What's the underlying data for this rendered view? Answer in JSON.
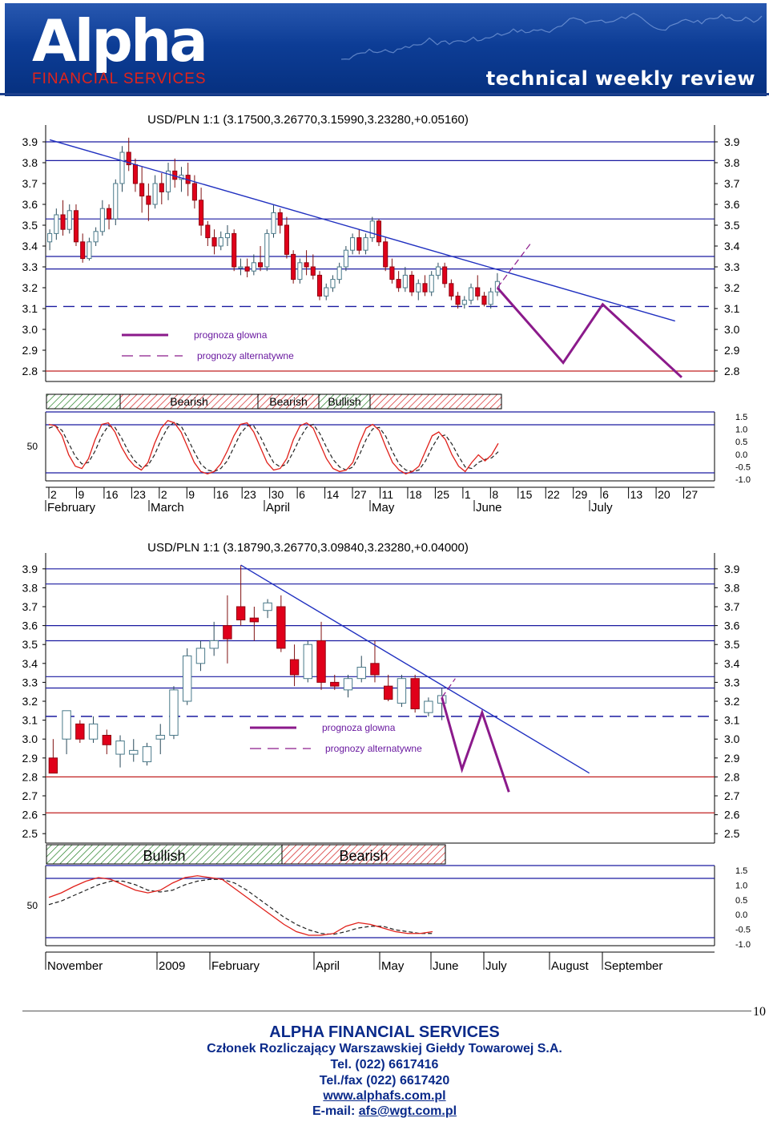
{
  "header": {
    "logo_text": "Alpha",
    "logo_subtitle": "FINANCIAL SERVICES",
    "tagline": "technical weekly review"
  },
  "colors": {
    "brand_blue": "#0d3d96",
    "brand_red": "#e2231a",
    "grid_blue": "#1a1aa0",
    "up_candle": "#7ba7b8",
    "down_candle": "#e0001a",
    "forecast": "#8b1a8b",
    "oscillator_main": "#e0201a",
    "oscillator_signal": "#222222"
  },
  "chart_data": [
    {
      "type": "candlestick",
      "title": "USD/PLN 1:1 (3.17500,3.26770,3.15990,3.23280,+0.05160)",
      "y_ticks": [
        "3.9",
        "3.8",
        "3.7",
        "3.6",
        "3.5",
        "3.4",
        "3.3",
        "3.2",
        "3.1",
        "3.0",
        "2.9",
        "2.8"
      ],
      "ylim": [
        2.75,
        3.95
      ],
      "x_day_ticks": [
        "2",
        "9",
        "16",
        "23",
        "2",
        "9",
        "16",
        "23",
        "30",
        "6",
        "14",
        "27",
        "11",
        "18",
        "25",
        "1",
        "8",
        "15",
        "22",
        "29",
        "6",
        "13",
        "20",
        "27"
      ],
      "x_month_ticks": [
        "February",
        "March",
        "April",
        "May",
        "June",
        "July"
      ],
      "horizontal_lines": [
        3.9,
        3.81,
        3.53,
        3.35,
        3.29,
        2.8
      ],
      "dashed_line": 3.11,
      "trendline": [
        [
          0,
          3.91
        ],
        [
          95,
          3.04
        ]
      ],
      "legend": [
        "prognoza glowna",
        "prognozy alternatywne"
      ],
      "forecast_path": [
        [
          68,
          3.2
        ],
        [
          78,
          2.84
        ],
        [
          84,
          3.12
        ],
        [
          96,
          2.77
        ]
      ],
      "alt_forecast": [
        [
          68,
          3.2
        ],
        [
          73,
          3.41
        ]
      ],
      "trend_bands": [
        {
          "label": "",
          "state": "bull"
        },
        {
          "label": "Bearish",
          "state": "bear"
        },
        {
          "label": "Bearish",
          "state": "bear"
        },
        {
          "label": "Bullish",
          "state": "bull"
        },
        {
          "label": "",
          "state": "bear"
        }
      ],
      "oscillator_ticks": [
        "1.5",
        "1.0",
        "0.5",
        "0.0",
        "-0.5",
        "-1.0"
      ],
      "oscillator_left_label": "50",
      "candles": [
        {
          "o": 3.42,
          "h": 3.48,
          "l": 3.38,
          "c": 3.46
        },
        {
          "o": 3.46,
          "h": 3.58,
          "l": 3.43,
          "c": 3.55
        },
        {
          "o": 3.55,
          "h": 3.62,
          "l": 3.45,
          "c": 3.48
        },
        {
          "o": 3.48,
          "h": 3.6,
          "l": 3.46,
          "c": 3.57
        },
        {
          "o": 3.57,
          "h": 3.6,
          "l": 3.4,
          "c": 3.42
        },
        {
          "o": 3.42,
          "h": 3.46,
          "l": 3.32,
          "c": 3.34
        },
        {
          "o": 3.34,
          "h": 3.44,
          "l": 3.33,
          "c": 3.42
        },
        {
          "o": 3.42,
          "h": 3.49,
          "l": 3.4,
          "c": 3.47
        },
        {
          "o": 3.47,
          "h": 3.62,
          "l": 3.45,
          "c": 3.58
        },
        {
          "o": 3.58,
          "h": 3.6,
          "l": 3.48,
          "c": 3.53
        },
        {
          "o": 3.53,
          "h": 3.72,
          "l": 3.5,
          "c": 3.7
        },
        {
          "o": 3.7,
          "h": 3.88,
          "l": 3.66,
          "c": 3.85
        },
        {
          "o": 3.85,
          "h": 3.92,
          "l": 3.76,
          "c": 3.79
        },
        {
          "o": 3.79,
          "h": 3.82,
          "l": 3.66,
          "c": 3.7
        },
        {
          "o": 3.7,
          "h": 3.78,
          "l": 3.56,
          "c": 3.64
        },
        {
          "o": 3.64,
          "h": 3.7,
          "l": 3.52,
          "c": 3.6
        },
        {
          "o": 3.6,
          "h": 3.74,
          "l": 3.58,
          "c": 3.7
        },
        {
          "o": 3.7,
          "h": 3.75,
          "l": 3.6,
          "c": 3.66
        },
        {
          "o": 3.66,
          "h": 3.8,
          "l": 3.62,
          "c": 3.76
        },
        {
          "o": 3.76,
          "h": 3.82,
          "l": 3.68,
          "c": 3.72
        },
        {
          "o": 3.72,
          "h": 3.78,
          "l": 3.66,
          "c": 3.74
        },
        {
          "o": 3.74,
          "h": 3.8,
          "l": 3.64,
          "c": 3.7
        },
        {
          "o": 3.7,
          "h": 3.74,
          "l": 3.58,
          "c": 3.62
        },
        {
          "o": 3.62,
          "h": 3.68,
          "l": 3.45,
          "c": 3.5
        },
        {
          "o": 3.5,
          "h": 3.52,
          "l": 3.4,
          "c": 3.44
        },
        {
          "o": 3.44,
          "h": 3.48,
          "l": 3.36,
          "c": 3.4
        },
        {
          "o": 3.4,
          "h": 3.47,
          "l": 3.38,
          "c": 3.44
        },
        {
          "o": 3.44,
          "h": 3.5,
          "l": 3.4,
          "c": 3.46
        },
        {
          "o": 3.46,
          "h": 3.48,
          "l": 3.28,
          "c": 3.3
        },
        {
          "o": 3.3,
          "h": 3.34,
          "l": 3.26,
          "c": 3.3
        },
        {
          "o": 3.3,
          "h": 3.34,
          "l": 3.25,
          "c": 3.28
        },
        {
          "o": 3.28,
          "h": 3.36,
          "l": 3.26,
          "c": 3.32
        },
        {
          "o": 3.32,
          "h": 3.4,
          "l": 3.28,
          "c": 3.3
        },
        {
          "o": 3.3,
          "h": 3.48,
          "l": 3.28,
          "c": 3.46
        },
        {
          "o": 3.46,
          "h": 3.6,
          "l": 3.44,
          "c": 3.56
        },
        {
          "o": 3.56,
          "h": 3.58,
          "l": 3.46,
          "c": 3.5
        },
        {
          "o": 3.5,
          "h": 3.54,
          "l": 3.34,
          "c": 3.36
        },
        {
          "o": 3.36,
          "h": 3.38,
          "l": 3.22,
          "c": 3.24
        },
        {
          "o": 3.24,
          "h": 3.34,
          "l": 3.22,
          "c": 3.32
        },
        {
          "o": 3.32,
          "h": 3.38,
          "l": 3.26,
          "c": 3.3
        },
        {
          "o": 3.3,
          "h": 3.36,
          "l": 3.24,
          "c": 3.26
        },
        {
          "o": 3.26,
          "h": 3.28,
          "l": 3.14,
          "c": 3.16
        },
        {
          "o": 3.16,
          "h": 3.22,
          "l": 3.14,
          "c": 3.2
        },
        {
          "o": 3.2,
          "h": 3.26,
          "l": 3.18,
          "c": 3.24
        },
        {
          "o": 3.24,
          "h": 3.32,
          "l": 3.22,
          "c": 3.3
        },
        {
          "o": 3.3,
          "h": 3.4,
          "l": 3.28,
          "c": 3.38
        },
        {
          "o": 3.38,
          "h": 3.46,
          "l": 3.36,
          "c": 3.44
        },
        {
          "o": 3.44,
          "h": 3.48,
          "l": 3.36,
          "c": 3.38
        },
        {
          "o": 3.38,
          "h": 3.46,
          "l": 3.36,
          "c": 3.44
        },
        {
          "o": 3.44,
          "h": 3.54,
          "l": 3.42,
          "c": 3.52
        },
        {
          "o": 3.52,
          "h": 3.53,
          "l": 3.4,
          "c": 3.42
        },
        {
          "o": 3.42,
          "h": 3.44,
          "l": 3.28,
          "c": 3.3
        },
        {
          "o": 3.3,
          "h": 3.34,
          "l": 3.22,
          "c": 3.24
        },
        {
          "o": 3.24,
          "h": 3.28,
          "l": 3.18,
          "c": 3.2
        },
        {
          "o": 3.2,
          "h": 3.3,
          "l": 3.18,
          "c": 3.26
        },
        {
          "o": 3.26,
          "h": 3.28,
          "l": 3.16,
          "c": 3.18
        },
        {
          "o": 3.18,
          "h": 3.24,
          "l": 3.14,
          "c": 3.22
        },
        {
          "o": 3.22,
          "h": 3.26,
          "l": 3.16,
          "c": 3.18
        },
        {
          "o": 3.18,
          "h": 3.28,
          "l": 3.16,
          "c": 3.26
        },
        {
          "o": 3.26,
          "h": 3.32,
          "l": 3.24,
          "c": 3.3
        },
        {
          "o": 3.3,
          "h": 3.32,
          "l": 3.2,
          "c": 3.22
        },
        {
          "o": 3.22,
          "h": 3.24,
          "l": 3.14,
          "c": 3.16
        },
        {
          "o": 3.16,
          "h": 3.18,
          "l": 3.1,
          "c": 3.12
        },
        {
          "o": 3.12,
          "h": 3.16,
          "l": 3.1,
          "c": 3.14
        },
        {
          "o": 3.14,
          "h": 3.22,
          "l": 3.12,
          "c": 3.2
        },
        {
          "o": 3.2,
          "h": 3.26,
          "l": 3.14,
          "c": 3.16
        },
        {
          "o": 3.16,
          "h": 3.18,
          "l": 3.11,
          "c": 3.12
        },
        {
          "o": 3.12,
          "h": 3.2,
          "l": 3.1,
          "c": 3.18
        },
        {
          "o": 3.18,
          "h": 3.27,
          "l": 3.16,
          "c": 3.23
        }
      ],
      "oscillator_main": [
        70,
        68,
        55,
        30,
        15,
        12,
        25,
        50,
        70,
        72,
        60,
        40,
        25,
        15,
        10,
        20,
        45,
        65,
        75,
        72,
        60,
        40,
        20,
        8,
        5,
        8,
        18,
        35,
        55,
        70,
        72,
        60,
        40,
        20,
        10,
        12,
        25,
        50,
        68,
        72,
        65,
        45,
        25,
        12,
        8,
        10,
        20,
        45,
        65,
        70,
        62,
        40,
        20,
        10,
        5,
        8,
        15,
        35,
        55,
        60,
        50,
        30,
        15,
        8,
        20,
        30,
        22,
        30,
        45
      ],
      "oscillator_signal": [
        65,
        68,
        62,
        45,
        28,
        18,
        20,
        35,
        55,
        68,
        66,
        52,
        35,
        22,
        14,
        16,
        30,
        50,
        66,
        73,
        68,
        52,
        34,
        18,
        10,
        8,
        12,
        22,
        40,
        58,
        68,
        68,
        54,
        36,
        20,
        14,
        18,
        34,
        52,
        66,
        70,
        58,
        40,
        24,
        14,
        10,
        14,
        30,
        50,
        64,
        66,
        54,
        34,
        18,
        10,
        8,
        10,
        22,
        40,
        54,
        56,
        44,
        28,
        14,
        12,
        20,
        24,
        26,
        34
      ]
    },
    {
      "type": "candlestick",
      "title": "USD/PLN 1:1 (3.18790,3.26770,3.09840,3.23280,+0.04000)",
      "y_ticks": [
        "3.9",
        "3.8",
        "3.7",
        "3.6",
        "3.5",
        "3.4",
        "3.3",
        "3.2",
        "3.1",
        "3.0",
        "2.9",
        "2.8",
        "2.7",
        "2.6",
        "2.5"
      ],
      "ylim": [
        2.45,
        3.95
      ],
      "x_month_ticks": [
        "November",
        "2009",
        "February",
        "April",
        "May",
        "June",
        "July",
        "August",
        "September"
      ],
      "horizontal_lines": [
        3.9,
        3.82,
        3.6,
        3.52,
        3.33,
        3.27,
        2.8,
        2.61
      ],
      "dashed_line": 3.12,
      "trendline": [
        [
          14,
          3.92
        ],
        [
          40,
          2.82
        ]
      ],
      "legend": [
        "prognoza glowna",
        "prognozy alternatywne"
      ],
      "forecast_path": [
        [
          29,
          3.22
        ],
        [
          30.5,
          2.84
        ],
        [
          32,
          3.14
        ],
        [
          34,
          2.72
        ]
      ],
      "alt_forecast": [
        [
          29,
          3.22
        ],
        [
          30,
          3.32
        ]
      ],
      "trend_bands": [
        {
          "label": "Bullish",
          "state": "bull"
        },
        {
          "label": "Bearish",
          "state": "bear"
        }
      ],
      "oscillator_ticks": [
        "1.5",
        "1.0",
        "0.5",
        "0.0",
        "-0.5",
        "-1.0"
      ],
      "oscillator_left_label": "50",
      "candles": [
        {
          "o": 2.9,
          "h": 3.0,
          "l": 2.82,
          "c": 2.82
        },
        {
          "o": 3.0,
          "h": 3.15,
          "l": 2.92,
          "c": 3.15
        },
        {
          "o": 3.08,
          "h": 3.1,
          "l": 2.98,
          "c": 3.0
        },
        {
          "o": 3.0,
          "h": 3.12,
          "l": 2.98,
          "c": 3.08
        },
        {
          "o": 3.02,
          "h": 3.05,
          "l": 2.92,
          "c": 2.97
        },
        {
          "o": 2.92,
          "h": 3.02,
          "l": 2.85,
          "c": 2.99
        },
        {
          "o": 2.92,
          "h": 3.0,
          "l": 2.88,
          "c": 2.94
        },
        {
          "o": 2.88,
          "h": 2.98,
          "l": 2.86,
          "c": 2.96
        },
        {
          "o": 3.0,
          "h": 3.08,
          "l": 2.92,
          "c": 3.02
        },
        {
          "o": 3.02,
          "h": 3.28,
          "l": 3.0,
          "c": 3.26
        },
        {
          "o": 3.2,
          "h": 3.48,
          "l": 3.18,
          "c": 3.44
        },
        {
          "o": 3.4,
          "h": 3.52,
          "l": 3.36,
          "c": 3.48
        },
        {
          "o": 3.48,
          "h": 3.62,
          "l": 3.44,
          "c": 3.52
        },
        {
          "o": 3.6,
          "h": 3.76,
          "l": 3.4,
          "c": 3.53
        },
        {
          "o": 3.7,
          "h": 3.92,
          "l": 3.6,
          "c": 3.63
        },
        {
          "o": 3.64,
          "h": 3.7,
          "l": 3.52,
          "c": 3.62
        },
        {
          "o": 3.68,
          "h": 3.74,
          "l": 3.64,
          "c": 3.72
        },
        {
          "o": 3.7,
          "h": 3.76,
          "l": 3.46,
          "c": 3.48
        },
        {
          "o": 3.42,
          "h": 3.5,
          "l": 3.28,
          "c": 3.34
        },
        {
          "o": 3.32,
          "h": 3.52,
          "l": 3.3,
          "c": 3.5
        },
        {
          "o": 3.52,
          "h": 3.62,
          "l": 3.26,
          "c": 3.3
        },
        {
          "o": 3.3,
          "h": 3.34,
          "l": 3.26,
          "c": 3.28
        },
        {
          "o": 3.26,
          "h": 3.34,
          "l": 3.22,
          "c": 3.32
        },
        {
          "o": 3.32,
          "h": 3.44,
          "l": 3.3,
          "c": 3.38
        },
        {
          "o": 3.4,
          "h": 3.52,
          "l": 3.3,
          "c": 3.34
        },
        {
          "o": 3.28,
          "h": 3.34,
          "l": 3.2,
          "c": 3.21
        },
        {
          "o": 3.19,
          "h": 3.34,
          "l": 3.17,
          "c": 3.32
        },
        {
          "o": 3.32,
          "h": 3.34,
          "l": 3.14,
          "c": 3.16
        },
        {
          "o": 3.14,
          "h": 3.22,
          "l": 3.12,
          "c": 3.2
        },
        {
          "o": 3.19,
          "h": 3.27,
          "l": 3.1,
          "c": 3.23
        }
      ],
      "oscillator_main": [
        50,
        55,
        62,
        68,
        72,
        70,
        64,
        58,
        55,
        58,
        66,
        72,
        74,
        72,
        70,
        60,
        50,
        40,
        30,
        20,
        12,
        8,
        8,
        10,
        18,
        22,
        20,
        16,
        12,
        10,
        10,
        12
      ],
      "oscillator_signal": [
        42,
        46,
        52,
        58,
        64,
        68,
        68,
        64,
        58,
        56,
        58,
        64,
        68,
        70,
        70,
        66,
        58,
        48,
        38,
        28,
        20,
        14,
        10,
        9,
        12,
        16,
        18,
        18,
        14,
        12,
        10,
        10
      ]
    }
  ],
  "footer": {
    "page_number": "10",
    "company": "ALPHA FINANCIAL SERVICES",
    "member": "Członek Rozliczający Warszawskiej Giełdy Towarowej S.A.",
    "tel": "Tel. (022) 6617416",
    "fax": "Tel./fax (022) 6617420",
    "www": "www.alphafs.com.pl",
    "email_label": "E-mail: ",
    "email": "afs@wgt.com.pl"
  }
}
